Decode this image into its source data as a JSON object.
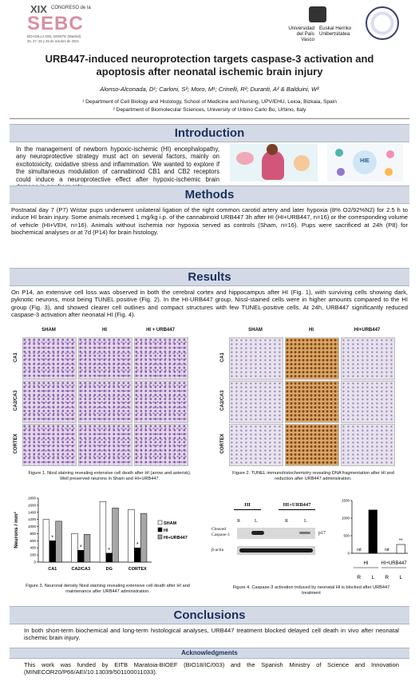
{
  "header": {
    "congress_number": "XIX",
    "congress_line": "CONGRESO de la",
    "congress_name": "SEBC",
    "congress_place": "BOADILLA DEL MONTE (Madrid)",
    "congress_dates": "26, 27, 28 y 29 de octubre de 2021",
    "university_es": "Universidad del País Vasco",
    "university_eu": "Euskal Herriko Unibertsitatea"
  },
  "title": "URB447-induced neuroprotection targets caspase-3 activation and apoptosis after neonatal ischemic brain injury",
  "authors": "Alonso-Alconada, D¹; Carloni, S²; Moro, M¹; Crinelli, R²; Duranti, A² & Balduini, W²",
  "affiliations": [
    "¹ Department of Cell Biology and Histology, School of Medicine and Nursing, UPV/EHU, Leioa, Bizkaia, Spain",
    "² Department of Biomolecular Sciences, University of Urbino Carlo Bo, Urbino, Italy"
  ],
  "introduction": {
    "heading": "Introduction",
    "text": "In the management of newborn hypoxic-ischemic (HI) encephalopathy, any neuroprotective strategy must act on several factors, mainly on excitotoxicity, oxidative stress and inflammation. We wanted to explore if the simultaneous modulation of cannabinoid CB1 and CB2 receptors could induce a neuroprotective effect after hypoxic-ischemic brain damage in newborn rats.",
    "image_label": "HIE"
  },
  "methods": {
    "heading": "Methods",
    "text": "Postnatal day 7 (P7) Wistar pups underwent unilateral ligation of the right common carotid artery and later hypoxia (8% O2/92%N2) for 2.5 h to induce HI brain injury. Some animals received 1 mg/kg i.p. of the cannabinoid URB447 3h after HI (HI+URB447, n=16) or the corresponding volume of vehicle (HI+VEH, n=16). Animals without ischemia nor hypoxia served as controls (Sham, n=16). Pups were sacrificed at 24h (P8) for biochemical analyses or at 7d (P14) for brain histology."
  },
  "results": {
    "heading": "Results",
    "text": "On P14, an extensive cell loss was observed in both the cerebral cortex and hippocampus after HI (Fig. 1), with surviving cells showing dark, pyknotic neurons, most being TUNEL positive (Fig. 2). In the HI-URB447 group, Nissl-stained cells were in higher amounts compared to the HI group (Fig. 3), and showed clearer cell outlines and compact structures with few TUNEL-positive cells. At 24h, URB447 significantly reduced caspase-3 activation after neonatal HI (Fig. 4)."
  },
  "figure1": {
    "columns": [
      "SHAM",
      "HI",
      "HI + URB447"
    ],
    "rows": [
      "CA1",
      "CA2/CA3",
      "CORTEX"
    ],
    "caption": "Figure 1. Nissl staining revealing extensive cell death after HI (arrow and asterisk). Well preserved neurons in Sham and HI+URB447."
  },
  "figure2": {
    "columns": [
      "SHAM",
      "HI",
      "HI+URB447"
    ],
    "rows": [
      "CA1",
      "CA2/CA3",
      "CORTEX"
    ],
    "caption": "Figure 2. TUNEL immunohistochemistry revealing DNA fragmentation after HI and reduction after URB447 administration."
  },
  "figure3": {
    "caption": "Figure 3. Neuronal density Nissl staining revealing extensive cell death after HI and maintenance after URB447 administration."
  },
  "figure4": {
    "caption": "Figure 4. Caspase-3 activation induced by neonatal HI is blocked after URB447 treatment",
    "blot": {
      "groups": [
        "HI",
        "HI+URB447"
      ],
      "lanes": [
        "R",
        "L",
        "R",
        "L"
      ],
      "band_labels": [
        "Cleaved Caspase-3",
        "β-actin"
      ],
      "size_label": "p17"
    }
  },
  "chart_data": [
    {
      "type": "bar",
      "y_label": "Neurons / mm²",
      "categories": [
        "CA1",
        "CA2/CA3",
        "DG",
        "CORTEX"
      ],
      "series": [
        {
          "name": "SHAM",
          "color": "#ffffff",
          "values": [
            1200,
            800,
            1700,
            1480
          ]
        },
        {
          "name": "HI",
          "color": "#000000",
          "values": [
            600,
            330,
            250,
            400
          ]
        },
        {
          "name": "HI+URB447",
          "color": "#a6a6a6",
          "values": [
            1150,
            780,
            1520,
            1370
          ]
        }
      ],
      "significance": [
        "*",
        "*",
        "*",
        "*"
      ],
      "ylim": [
        0,
        1800
      ],
      "yticks": [
        0,
        200,
        400,
        600,
        800,
        1000,
        1200,
        1400,
        1600,
        1800
      ],
      "legend": "right"
    },
    {
      "type": "bar",
      "categories": [
        "R",
        "L",
        "R",
        "L"
      ],
      "groups": [
        "HI",
        "HI+URB447"
      ],
      "values": [
        null,
        1230,
        null,
        250
      ],
      "value_labels": [
        "nd",
        null,
        "nd",
        null
      ],
      "colors": [
        "#000000",
        "#000000",
        "#ffffff",
        "#ffffff"
      ],
      "significance": [
        null,
        null,
        null,
        "**"
      ],
      "ylim": [
        0,
        1500
      ],
      "yticks": [
        0,
        500,
        1000,
        1500
      ]
    }
  ],
  "conclusions": {
    "heading": "Conclusions",
    "text": "In both short-term biochemical and long-term histological analyses, URB447 treatment blocked delayed cell death in vivo after neonatal ischemic brain injury."
  },
  "acknowledgments": {
    "heading": "Acknowledgments",
    "text": "This work was funded by EITB Maratoia-BIOEF (BIO18/IC/003) and the Spanish Ministry of Science and Innovation (MINECOR20/P66/AEI/10.13039/501100011033)."
  }
}
